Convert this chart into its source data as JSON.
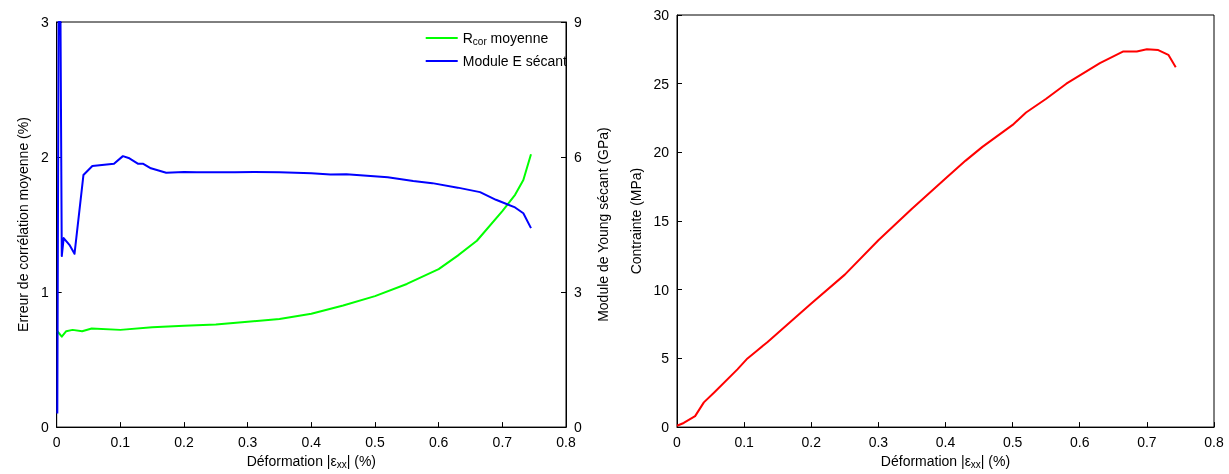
{
  "chart_data": [
    {
      "type": "line",
      "xlabel": "Déformation |ε$_{xx}$| (%)",
      "ylabel": "Erreur de corrélation moyenne (%)",
      "y2label": "Module de Young sécant (GPa)",
      "xlim": [
        0,
        0.8
      ],
      "xticks": [
        0,
        0.1,
        0.2,
        0.3,
        0.4,
        0.5,
        0.6,
        0.7,
        0.8
      ],
      "ylim": [
        0,
        3
      ],
      "yticks": [
        0,
        1,
        2,
        3
      ],
      "y2lim": [
        0,
        9
      ],
      "y2ticks": [
        0,
        3,
        6,
        9
      ],
      "grid": false,
      "legend": "top right",
      "marker": "none",
      "line_style": "solid",
      "series": [
        {
          "name": "R$_{cor}$ moyenne",
          "color": "#00ff00",
          "x": [
            0.001,
            0.008,
            0.015,
            0.025,
            0.04,
            0.055,
            0.1,
            0.15,
            0.2,
            0.25,
            0.3,
            0.35,
            0.4,
            0.45,
            0.5,
            0.55,
            0.6,
            0.63,
            0.66,
            0.7,
            0.72,
            0.733,
            0.745
          ],
          "values": [
            0.71,
            0.67,
            0.71,
            0.72,
            0.71,
            0.73,
            0.72,
            0.74,
            0.75,
            0.76,
            0.78,
            0.8,
            0.84,
            0.9,
            0.97,
            1.06,
            1.17,
            1.27,
            1.38,
            1.6,
            1.72,
            1.83,
            2.02
          ]
        },
        {
          "name": "Module E sécant",
          "color": "#0000ff",
          "axis": "y2",
          "x": [
            0.001,
            0.003,
            0.006,
            0.008,
            0.011,
            0.02,
            0.028,
            0.042,
            0.056,
            0.09,
            0.104,
            0.113,
            0.128,
            0.136,
            0.148,
            0.172,
            0.2,
            0.22,
            0.28,
            0.31,
            0.35,
            0.4,
            0.43,
            0.455,
            0.52,
            0.56,
            0.59,
            0.63,
            0.665,
            0.69,
            0.72,
            0.733,
            0.745
          ],
          "values": [
            0.3,
            9,
            9,
            3.8,
            4.2,
            4.05,
            3.85,
            5.6,
            5.8,
            5.85,
            6.02,
            5.98,
            5.85,
            5.85,
            5.75,
            5.65,
            5.67,
            5.66,
            5.66,
            5.67,
            5.66,
            5.64,
            5.61,
            5.62,
            5.55,
            5.47,
            5.42,
            5.32,
            5.22,
            5.05,
            4.88,
            4.75,
            4.42
          ]
        }
      ]
    },
    {
      "type": "line",
      "xlabel": "Déformation |ε$_{xx}$| (%)",
      "ylabel": "Contrainte (MPa)",
      "xlim": [
        0,
        0.8
      ],
      "xticks": [
        0,
        0.1,
        0.2,
        0.3,
        0.4,
        0.5,
        0.6,
        0.7,
        0.8
      ],
      "ylim": [
        0,
        30
      ],
      "yticks": [
        0,
        5,
        10,
        15,
        20,
        25,
        30
      ],
      "grid": false,
      "legend": false,
      "marker": "none",
      "line_style": "solid",
      "series": [
        {
          "color": "#ff0000",
          "x": [
            0,
            0.01,
            0.027,
            0.04,
            0.055,
            0.09,
            0.105,
            0.12,
            0.135,
            0.17,
            0.2,
            0.25,
            0.3,
            0.35,
            0.4,
            0.43,
            0.455,
            0.5,
            0.52,
            0.55,
            0.58,
            0.63,
            0.665,
            0.685,
            0.7,
            0.717,
            0.732,
            0.743
          ],
          "values": [
            0.1,
            0.3,
            0.8,
            1.8,
            2.5,
            4.2,
            5.0,
            5.6,
            6.2,
            7.7,
            9.0,
            11.1,
            13.6,
            15.9,
            18.1,
            19.4,
            20.4,
            22.0,
            22.9,
            23.9,
            25.0,
            26.5,
            27.35,
            27.35,
            27.5,
            27.45,
            27.1,
            26.2
          ]
        }
      ]
    }
  ]
}
